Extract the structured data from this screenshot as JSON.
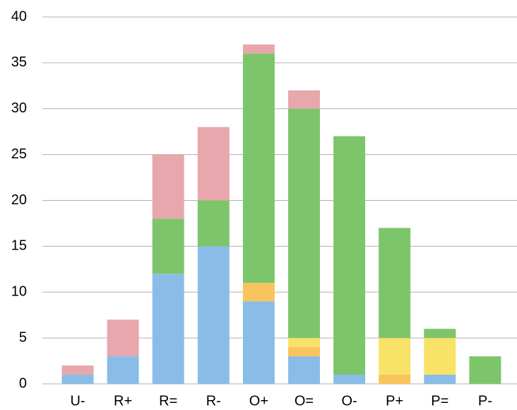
{
  "chart_data": {
    "type": "stacked_bar",
    "categories": [
      "U-",
      "R+",
      "R=",
      "R-",
      "O+",
      "O=",
      "O-",
      "P+",
      "P=",
      "P-"
    ],
    "series": [
      {
        "color": "#89bde8",
        "values": [
          1,
          3,
          12,
          15,
          9,
          3,
          1,
          0,
          1,
          0
        ]
      },
      {
        "color": "#f7c45e",
        "values": [
          0,
          0,
          0,
          0,
          2,
          1,
          0,
          1,
          0,
          0
        ]
      },
      {
        "color": "#f8e268",
        "values": [
          0,
          0,
          0,
          0,
          0,
          1,
          0,
          4,
          4,
          0
        ]
      },
      {
        "color": "#7dc56b",
        "values": [
          0,
          0,
          6,
          5,
          25,
          25,
          26,
          12,
          1,
          3
        ]
      },
      {
        "color": "#e8a7ad",
        "values": [
          1,
          4,
          7,
          8,
          1,
          2,
          0,
          0,
          0,
          0
        ]
      }
    ],
    "ylim": [
      0,
      40
    ],
    "yticks": [
      0,
      5,
      10,
      15,
      20,
      25,
      30,
      35,
      40
    ],
    "grid": true
  }
}
